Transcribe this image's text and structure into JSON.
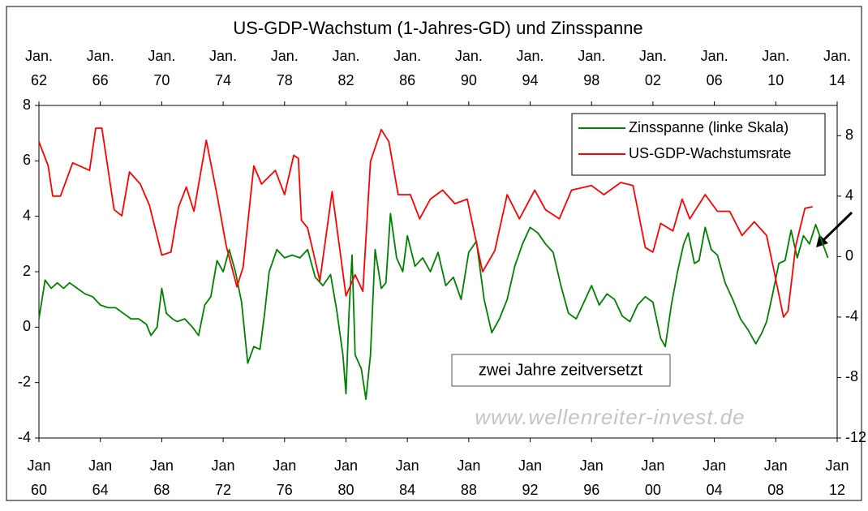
{
  "chart_data": {
    "type": "line",
    "title": "US-GDP-Wachstum (1-Jahres-GD) und Zinsspanne",
    "annotation": "zwei Jahre zeitversetzt",
    "watermark": "www.wellenreiter-invest.de",
    "xlim": [
      1960,
      2012
    ],
    "xticks": [
      {
        "value": 1960,
        "label": [
          "Jan",
          "60"
        ]
      },
      {
        "value": 1964,
        "label": [
          "Jan",
          "64"
        ]
      },
      {
        "value": 1968,
        "label": [
          "Jan",
          "68"
        ]
      },
      {
        "value": 1972,
        "label": [
          "Jan",
          "72"
        ]
      },
      {
        "value": 1976,
        "label": [
          "Jan",
          "76"
        ]
      },
      {
        "value": 1980,
        "label": [
          "Jan",
          "80"
        ]
      },
      {
        "value": 1984,
        "label": [
          "Jan",
          "84"
        ]
      },
      {
        "value": 1988,
        "label": [
          "Jan",
          "88"
        ]
      },
      {
        "value": 1992,
        "label": [
          "Jan",
          "92"
        ]
      },
      {
        "value": 1996,
        "label": [
          "Jan",
          "96"
        ]
      },
      {
        "value": 2000,
        "label": [
          "Jan",
          "00"
        ]
      },
      {
        "value": 2004,
        "label": [
          "Jan",
          "04"
        ]
      },
      {
        "value": 2008,
        "label": [
          "Jan",
          "08"
        ]
      },
      {
        "value": 2012,
        "label": [
          "Jan",
          "12"
        ]
      }
    ],
    "x2lim": [
      1962,
      2014
    ],
    "x2ticks": [
      {
        "value": 1962,
        "label": [
          "Jan.",
          "62"
        ]
      },
      {
        "value": 1966,
        "label": [
          "Jan.",
          "66"
        ]
      },
      {
        "value": 1970,
        "label": [
          "Jan.",
          "70"
        ]
      },
      {
        "value": 1974,
        "label": [
          "Jan.",
          "74"
        ]
      },
      {
        "value": 1978,
        "label": [
          "Jan.",
          "78"
        ]
      },
      {
        "value": 1982,
        "label": [
          "Jan.",
          "82"
        ]
      },
      {
        "value": 1986,
        "label": [
          "Jan.",
          "86"
        ]
      },
      {
        "value": 1990,
        "label": [
          "Jan.",
          "90"
        ]
      },
      {
        "value": 1994,
        "label": [
          "Jan.",
          "94"
        ]
      },
      {
        "value": 1998,
        "label": [
          "Jan.",
          "98"
        ]
      },
      {
        "value": 2002,
        "label": [
          "Jan.",
          "02"
        ]
      },
      {
        "value": 2006,
        "label": [
          "Jan.",
          "06"
        ]
      },
      {
        "value": 2010,
        "label": [
          "Jan.",
          "10"
        ]
      },
      {
        "value": 2014,
        "label": [
          "Jan.",
          "14"
        ]
      }
    ],
    "ylim": [
      -4,
      8
    ],
    "yticks": [
      -4,
      -2,
      0,
      2,
      4,
      6,
      8
    ],
    "y2lim": [
      -12,
      10
    ],
    "y2ticks": [
      -12,
      -8,
      -4,
      0,
      4,
      8
    ],
    "legend": "top-right",
    "series": [
      {
        "name": "Zinsspanne (linke Skala)",
        "color": "#008000",
        "x": [
          1960.0,
          1960.4,
          1960.8,
          1961.2,
          1961.6,
          1962.0,
          1962.5,
          1963.0,
          1963.5,
          1964.0,
          1964.5,
          1965.0,
          1965.5,
          1966.0,
          1966.5,
          1967.0,
          1967.3,
          1967.7,
          1968.0,
          1968.3,
          1968.7,
          1969.0,
          1969.5,
          1970.0,
          1970.4,
          1970.8,
          1971.2,
          1971.6,
          1972.0,
          1972.4,
          1972.8,
          1973.2,
          1973.6,
          1974.0,
          1974.4,
          1974.7,
          1975.0,
          1975.5,
          1976.0,
          1976.5,
          1977.0,
          1977.5,
          1978.0,
          1978.5,
          1979.0,
          1979.4,
          1979.8,
          1980.0,
          1980.2,
          1980.4,
          1980.6,
          1981.0,
          1981.3,
          1981.6,
          1981.9,
          1982.3,
          1982.6,
          1982.9,
          1983.3,
          1983.7,
          1984.0,
          1984.5,
          1985.0,
          1985.5,
          1986.0,
          1986.5,
          1987.0,
          1987.5,
          1988.0,
          1988.5,
          1989.0,
          1989.5,
          1990.0,
          1990.5,
          1991.0,
          1991.5,
          1992.0,
          1992.5,
          1993.0,
          1993.5,
          1994.0,
          1994.5,
          1995.0,
          1995.5,
          1996.0,
          1996.5,
          1997.0,
          1997.5,
          1998.0,
          1998.5,
          1999.0,
          1999.5,
          2000.0,
          2000.5,
          2000.8,
          2001.2,
          2001.6,
          2002.0,
          2002.3,
          2002.7,
          2003.0,
          2003.4,
          2003.8,
          2004.2,
          2004.7,
          2005.2,
          2005.7,
          2006.2,
          2006.7,
          2007.1,
          2007.4,
          2007.8,
          2008.2,
          2008.6,
          2009.0,
          2009.4,
          2009.8,
          2010.2,
          2010.6,
          2011.0,
          2011.4
        ],
        "values": [
          0.3,
          1.7,
          1.4,
          1.6,
          1.4,
          1.6,
          1.4,
          1.2,
          1.1,
          0.8,
          0.7,
          0.7,
          0.5,
          0.3,
          0.3,
          0.1,
          -0.3,
          0.0,
          1.4,
          0.5,
          0.3,
          0.2,
          0.3,
          0.0,
          -0.3,
          0.8,
          1.1,
          2.4,
          2.0,
          2.8,
          2.0,
          0.9,
          -1.3,
          -0.7,
          -0.8,
          0.5,
          2.0,
          2.8,
          2.5,
          2.6,
          2.5,
          2.8,
          1.8,
          1.5,
          1.9,
          0.6,
          -1.0,
          -2.4,
          0.5,
          2.6,
          -1.0,
          -1.5,
          -2.6,
          -1.0,
          2.8,
          1.4,
          1.6,
          4.1,
          2.5,
          2.0,
          3.3,
          2.2,
          2.5,
          2.0,
          2.7,
          1.5,
          1.8,
          1.0,
          2.7,
          3.1,
          1.0,
          -0.2,
          0.3,
          1.0,
          2.2,
          3.0,
          3.6,
          3.4,
          3.0,
          2.7,
          1.5,
          0.5,
          0.3,
          0.9,
          1.5,
          0.8,
          1.2,
          1.0,
          0.4,
          0.2,
          0.8,
          1.1,
          0.9,
          -0.4,
          -0.7,
          0.8,
          2.0,
          3.0,
          3.4,
          2.3,
          2.4,
          3.6,
          2.8,
          2.6,
          1.6,
          1.0,
          0.3,
          -0.1,
          -0.6,
          -0.2,
          0.2,
          1.2,
          2.3,
          2.4,
          3.5,
          2.5,
          3.3,
          3.0,
          3.7,
          3.1,
          2.5
        ]
      },
      {
        "name": "US-GDP-Wachstumsrate",
        "color": "#ff0000",
        "axis": "y2",
        "xaxis": "x2",
        "x": [
          1962.0,
          1962.6,
          1962.9,
          1963.4,
          1964.2,
          1965.3,
          1965.7,
          1966.1,
          1966.9,
          1967.4,
          1967.9,
          1968.6,
          1969.2,
          1970.0,
          1970.6,
          1971.1,
          1971.6,
          1972.1,
          1972.9,
          1973.6,
          1974.2,
          1974.9,
          1975.3,
          1976.0,
          1976.5,
          1977.4,
          1978.0,
          1978.6,
          1978.9,
          1979.1,
          1979.5,
          1980.3,
          1981.1,
          1982.0,
          1982.6,
          1983.1,
          1983.6,
          1984.3,
          1984.8,
          1985.4,
          1986.2,
          1986.8,
          1987.5,
          1988.3,
          1989.1,
          1989.9,
          1990.4,
          1990.9,
          1991.7,
          1992.5,
          1993.3,
          1994.3,
          1995.0,
          1995.9,
          1996.7,
          1998.0,
          1998.8,
          1999.9,
          2000.7,
          2001.5,
          2002.0,
          2002.5,
          2003.3,
          2003.9,
          2004.4,
          2005.4,
          2006.2,
          2007.0,
          2007.8,
          2008.6,
          2009.4,
          2009.9,
          2010.5,
          2010.8,
          2011.3,
          2011.9,
          2012.4
        ],
        "values": [
          7.6,
          6.0,
          4.0,
          4.0,
          6.2,
          5.7,
          8.5,
          8.5,
          3.1,
          2.7,
          5.6,
          4.8,
          3.4,
          0.1,
          0.3,
          3.3,
          4.6,
          3.0,
          7.7,
          4.1,
          0.7,
          -2.0,
          -0.7,
          6.0,
          4.8,
          5.7,
          4.1,
          6.7,
          6.5,
          2.4,
          1.9,
          -1.6,
          4.3,
          -2.6,
          -1.2,
          -2.3,
          6.3,
          8.4,
          7.6,
          4.1,
          4.1,
          2.5,
          3.8,
          4.4,
          3.5,
          3.8,
          1.4,
          -1.0,
          0.4,
          4.1,
          2.5,
          4.4,
          3.1,
          2.5,
          4.4,
          4.7,
          4.1,
          4.9,
          4.7,
          0.6,
          0.3,
          2.2,
          1.7,
          3.8,
          2.5,
          4.1,
          3.0,
          3.0,
          1.4,
          2.3,
          1.4,
          -1.0,
          -4.0,
          -3.6,
          0.7,
          3.2,
          3.3
        ]
      }
    ]
  }
}
